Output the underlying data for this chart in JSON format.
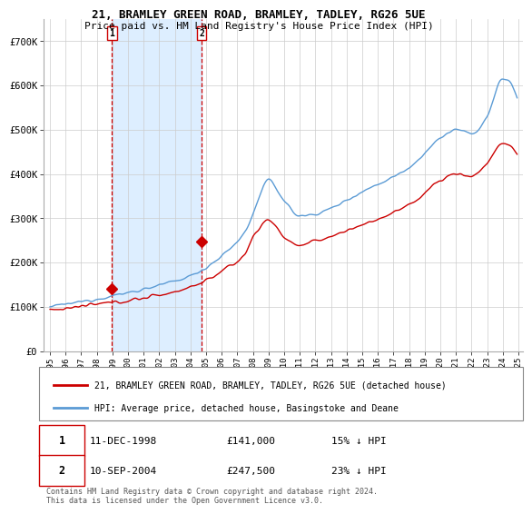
{
  "title_line1": "21, BRAMLEY GREEN ROAD, BRAMLEY, TADLEY, RG26 5UE",
  "title_line2": "Price paid vs. HM Land Registry's House Price Index (HPI)",
  "legend_line1": "21, BRAMLEY GREEN ROAD, BRAMLEY, TADLEY, RG26 5UE (detached house)",
  "legend_line2": "HPI: Average price, detached house, Basingstoke and Deane",
  "footer": "Contains HM Land Registry data © Crown copyright and database right 2024.\nThis data is licensed under the Open Government Licence v3.0.",
  "point1_date": "11-DEC-1998",
  "point1_price": "£141,000",
  "point1_hpi": "15% ↓ HPI",
  "point2_date": "10-SEP-2004",
  "point2_price": "£247,500",
  "point2_hpi": "23% ↓ HPI",
  "hpi_color": "#5b9bd5",
  "price_color": "#cc0000",
  "shade_color": "#ddeeff",
  "marker_color": "#cc0000",
  "bg_color": "#ffffff",
  "grid_color": "#cccccc",
  "ylim_min": 0,
  "ylim_max": 750000,
  "yticks": [
    0,
    100000,
    200000,
    300000,
    400000,
    500000,
    600000,
    700000
  ],
  "ytick_labels": [
    "£0",
    "£100K",
    "£200K",
    "£300K",
    "£400K",
    "£500K",
    "£600K",
    "£700K"
  ]
}
